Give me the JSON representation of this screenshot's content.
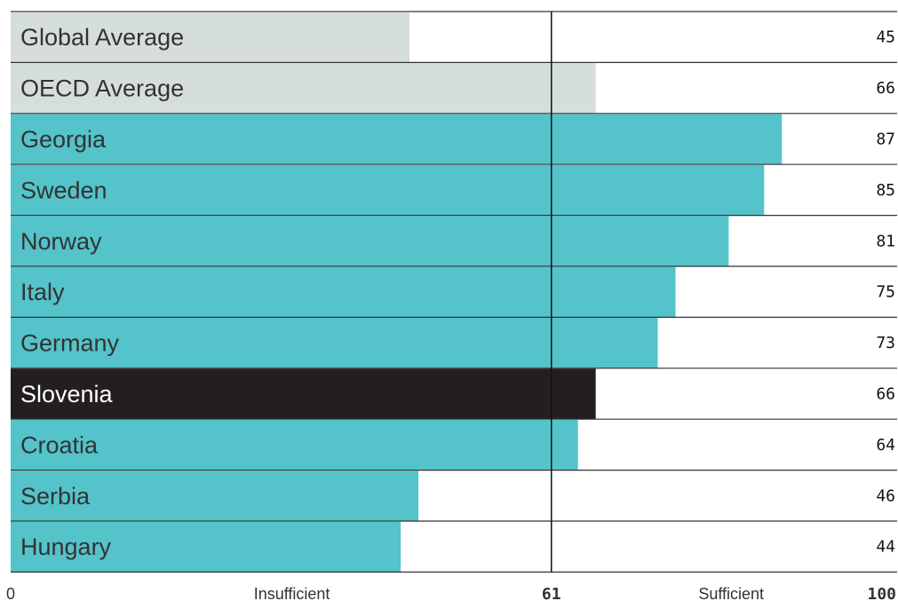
{
  "chart_data": {
    "type": "bar",
    "orientation": "horizontal",
    "categories": [
      "Global Average",
      "OECD Average",
      "Georgia",
      "Sweden",
      "Norway",
      "Italy",
      "Germany",
      "Slovenia",
      "Croatia",
      "Serbia",
      "Hungary"
    ],
    "values": [
      45,
      66,
      87,
      85,
      81,
      75,
      73,
      66,
      64,
      46,
      44
    ],
    "row_kind": [
      "average",
      "average",
      "country",
      "country",
      "country",
      "country",
      "country",
      "highlight",
      "country",
      "country",
      "country"
    ],
    "xlim": [
      0,
      100
    ],
    "threshold": 61,
    "axis": {
      "min_label": "0",
      "threshold_label": "61",
      "max_label": "100",
      "left_zone_label": "Insufficient",
      "right_zone_label": "Sufficient"
    },
    "colors": {
      "average": "#d6dedd",
      "country": "#54c3ca",
      "highlight": "#231f20",
      "label_dark": "#333333",
      "label_light": "#ffffff",
      "threshold_line": "#111111"
    },
    "grid": false
  }
}
